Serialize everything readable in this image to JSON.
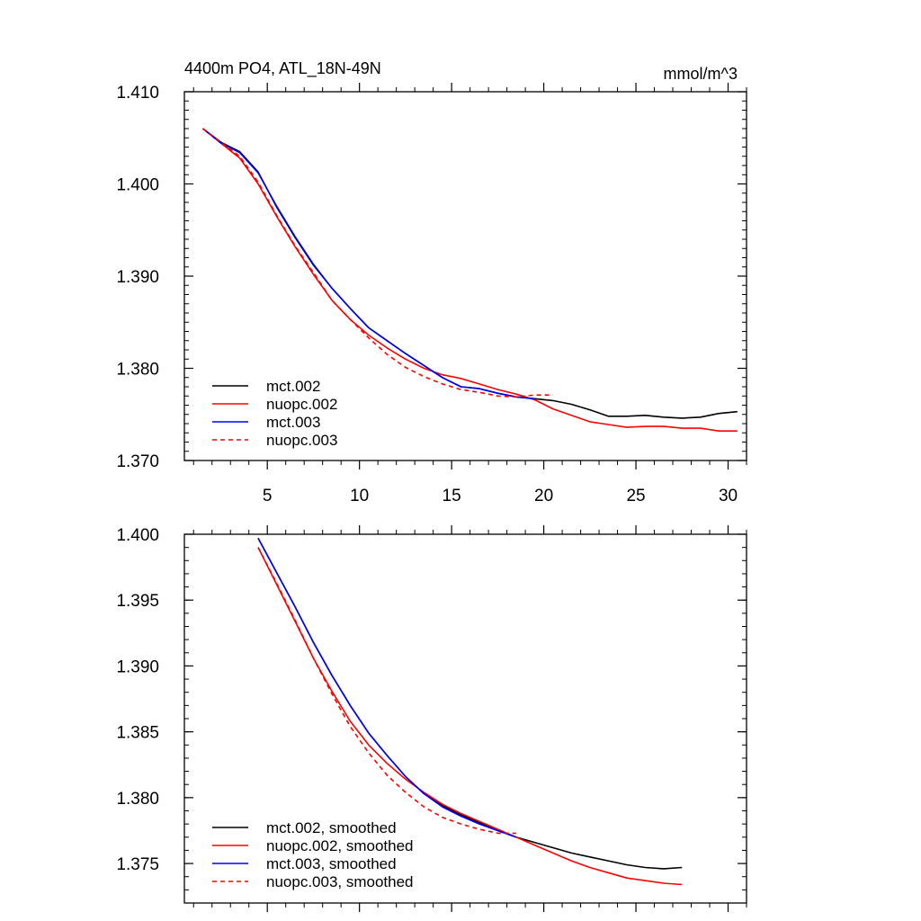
{
  "chart_data": [
    {
      "type": "line",
      "title_left": "4400m PO4, ATL_18N-49N",
      "title_right": "mmol/m^3",
      "xlabel": "",
      "ylabel": "",
      "xlim": [
        0.5,
        31
      ],
      "ylim": [
        1.37,
        1.41
      ],
      "xticks": [
        5,
        10,
        15,
        20,
        25,
        30
      ],
      "xtick_labels": [
        "5",
        "10",
        "15",
        "20",
        "25",
        "30"
      ],
      "yticks": [
        1.37,
        1.38,
        1.39,
        1.4,
        1.41
      ],
      "ytick_labels": [
        "1.370",
        "1.380",
        "1.390",
        "1.400",
        "1.410"
      ],
      "legend_position": "bottom-left",
      "series": [
        {
          "name": "mct.002",
          "color": "#000000",
          "dash": "solid",
          "x": [
            1.5,
            2.5,
            3.5,
            4.5,
            5.5,
            6.5,
            7.5,
            8.5,
            9.5,
            10.5,
            11.5,
            12.5,
            13.5,
            14.5,
            15.5,
            16.5,
            17.5,
            18.5,
            19.5,
            20.5,
            21.5,
            22.5,
            23.5,
            24.5,
            25.5,
            26.5,
            27.5,
            28.5,
            29.5,
            30.5
          ],
          "y": [
            1.406,
            1.4045,
            1.4035,
            1.4013,
            1.3975,
            1.3942,
            1.3912,
            1.3887,
            1.3865,
            1.3844,
            1.383,
            1.3816,
            1.3803,
            1.379,
            1.378,
            1.3778,
            1.3773,
            1.3769,
            1.3767,
            1.3765,
            1.3761,
            1.3755,
            1.3748,
            1.3748,
            1.3749,
            1.3747,
            1.3746,
            1.3747,
            1.3751,
            1.3753
          ]
        },
        {
          "name": "nuopc.002",
          "color": "#ff0000",
          "dash": "solid",
          "x": [
            1.5,
            2.5,
            3.5,
            4.5,
            5.5,
            6.5,
            7.5,
            8.5,
            9.5,
            10.5,
            11.5,
            12.5,
            13.5,
            14.5,
            15.5,
            16.5,
            17.5,
            18.5,
            19.5,
            20.5,
            21.5,
            22.5,
            23.5,
            24.5,
            25.5,
            26.5,
            27.5,
            28.5,
            29.5,
            30.5
          ],
          "y": [
            1.406,
            1.4044,
            1.4028,
            1.4,
            1.3965,
            1.3932,
            1.3902,
            1.3874,
            1.3853,
            1.3836,
            1.3822,
            1.381,
            1.38,
            1.3793,
            1.3789,
            1.3783,
            1.3777,
            1.3772,
            1.3766,
            1.3756,
            1.3749,
            1.3742,
            1.3739,
            1.3736,
            1.3737,
            1.3737,
            1.3735,
            1.3735,
            1.3732,
            1.3732
          ]
        },
        {
          "name": "mct.003",
          "color": "#0000ff",
          "dash": "solid",
          "x": [
            1.5,
            2.5,
            3.5,
            4.5,
            5.5,
            6.5,
            7.5,
            8.5,
            9.5,
            10.5,
            11.5,
            12.5,
            13.5,
            14.5,
            15.5,
            16.5,
            17.5,
            18.5,
            19.5
          ],
          "y": [
            1.406,
            1.4044,
            1.4034,
            1.4012,
            1.3976,
            1.3943,
            1.3913,
            1.3887,
            1.3865,
            1.3844,
            1.383,
            1.3816,
            1.3803,
            1.379,
            1.378,
            1.3778,
            1.3773,
            1.3769,
            1.3767
          ]
        },
        {
          "name": "nuopc.003",
          "color": "#ff0000",
          "dash": "dashed",
          "x": [
            1.5,
            2.5,
            3.5,
            4.5,
            5.5,
            6.5,
            7.5,
            8.5,
            9.5,
            10.5,
            11.5,
            12.5,
            13.5,
            14.5,
            15.5,
            16.5,
            17.5,
            18.5,
            19.5,
            20.5
          ],
          "y": [
            1.406,
            1.4045,
            1.403,
            1.4002,
            1.3966,
            1.3933,
            1.3904,
            1.3874,
            1.3853,
            1.3833,
            1.3815,
            1.3801,
            1.3791,
            1.3783,
            1.3777,
            1.3774,
            1.377,
            1.3769,
            1.3771,
            1.3771
          ]
        }
      ]
    },
    {
      "type": "line",
      "title_left": "",
      "title_right": "",
      "xlabel": "",
      "ylabel": "",
      "xlim": [
        0.5,
        31
      ],
      "ylim": [
        1.372,
        1.4
      ],
      "xticks": [
        5,
        10,
        15,
        20,
        25,
        30
      ],
      "xtick_labels": [],
      "yticks": [
        1.375,
        1.38,
        1.385,
        1.39,
        1.395,
        1.4
      ],
      "ytick_labels": [
        "1.375",
        "1.380",
        "1.385",
        "1.390",
        "1.395",
        "1.400"
      ],
      "legend_position": "bottom-left",
      "series": [
        {
          "name": "mct.002, smoothed",
          "color": "#000000",
          "dash": "solid",
          "x": [
            4.5,
            5.5,
            6.5,
            7.5,
            8.5,
            9.5,
            10.5,
            11.5,
            12.5,
            13.5,
            14.5,
            15.5,
            16.5,
            17.5,
            18.5,
            19.5,
            20.5,
            21.5,
            22.5,
            23.5,
            24.5,
            25.5,
            26.5,
            27.5
          ],
          "y": [
            1.3997,
            1.3971,
            1.3945,
            1.3918,
            1.3893,
            1.387,
            1.3849,
            1.3832,
            1.3816,
            1.3803,
            1.3794,
            1.3787,
            1.3781,
            1.3775,
            1.377,
            1.3766,
            1.3762,
            1.3758,
            1.3755,
            1.3752,
            1.3749,
            1.3747,
            1.3746,
            1.3747
          ]
        },
        {
          "name": "nuopc.002, smoothed",
          "color": "#ff0000",
          "dash": "solid",
          "x": [
            4.5,
            5.5,
            6.5,
            7.5,
            8.5,
            9.5,
            10.5,
            11.5,
            12.5,
            13.5,
            14.5,
            15.5,
            16.5,
            17.5,
            18.5,
            19.5,
            20.5,
            21.5,
            22.5,
            23.5,
            24.5,
            25.5,
            26.5,
            27.5
          ],
          "y": [
            1.399,
            1.3962,
            1.3934,
            1.3906,
            1.3881,
            1.3858,
            1.384,
            1.3826,
            1.3814,
            1.3804,
            1.3795,
            1.3788,
            1.3782,
            1.3776,
            1.377,
            1.3764,
            1.3758,
            1.3752,
            1.3747,
            1.3743,
            1.3739,
            1.3737,
            1.3735,
            1.3734
          ]
        },
        {
          "name": "mct.003, smoothed",
          "color": "#0000ff",
          "dash": "solid",
          "x": [
            4.5,
            5.5,
            6.5,
            7.5,
            8.5,
            9.5,
            10.5,
            11.5,
            12.5,
            13.5,
            14.5,
            15.5,
            16.5,
            17.5,
            18.5
          ],
          "y": [
            1.3997,
            1.3971,
            1.3945,
            1.3918,
            1.3893,
            1.387,
            1.3849,
            1.3832,
            1.3816,
            1.3803,
            1.3793,
            1.3786,
            1.378,
            1.3775,
            1.377
          ]
        },
        {
          "name": "nuopc.003, smoothed",
          "color": "#ff0000",
          "dash": "dashed",
          "x": [
            4.5,
            5.5,
            6.5,
            7.5,
            8.5,
            9.5,
            10.5,
            11.5,
            12.5,
            13.5,
            14.5,
            15.5,
            16.5,
            17.5,
            18.5
          ],
          "y": [
            1.399,
            1.3963,
            1.3935,
            1.3906,
            1.3879,
            1.3854,
            1.3834,
            1.3817,
            1.3804,
            1.3793,
            1.3785,
            1.378,
            1.3776,
            1.3773,
            1.3773
          ]
        }
      ]
    }
  ]
}
